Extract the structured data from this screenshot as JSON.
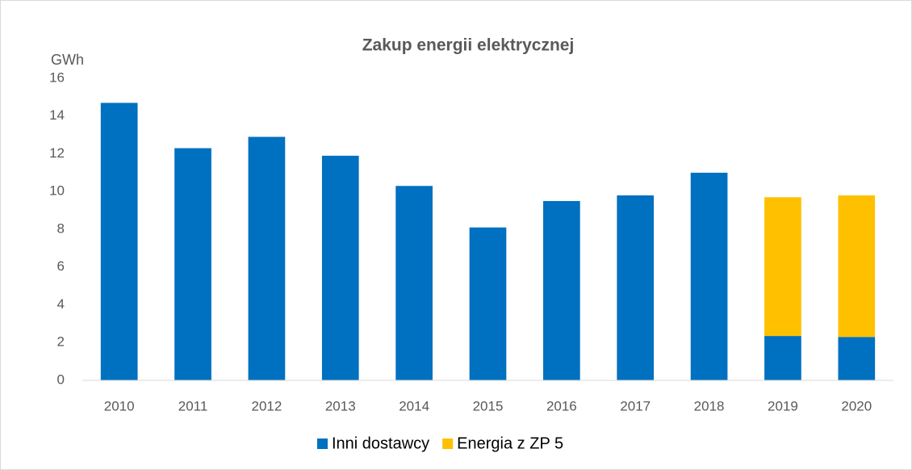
{
  "chart_data": {
    "type": "stacked_bar",
    "title": "Zakup energii elektrycznej",
    "y_label": "GWh",
    "categories": [
      "2010",
      "2011",
      "2012",
      "2013",
      "2014",
      "2015",
      "2016",
      "2017",
      "2018",
      "2019",
      "2020"
    ],
    "series": [
      {
        "name": "Inni dostawcy",
        "color": "#0070c0",
        "values": [
          14.7,
          12.3,
          12.9,
          11.9,
          10.3,
          8.1,
          9.5,
          9.8,
          11.0,
          2.35,
          2.3
        ]
      },
      {
        "name": "Energia z ZP 5",
        "color": "#ffc000",
        "values": [
          null,
          null,
          null,
          null,
          null,
          null,
          null,
          null,
          null,
          7.35,
          7.5
        ]
      }
    ],
    "ylim": [
      0,
      16
    ],
    "yticks": [
      0,
      2,
      4,
      6,
      8,
      10,
      12,
      14,
      16
    ],
    "grid": false,
    "legend": "bottom"
  }
}
